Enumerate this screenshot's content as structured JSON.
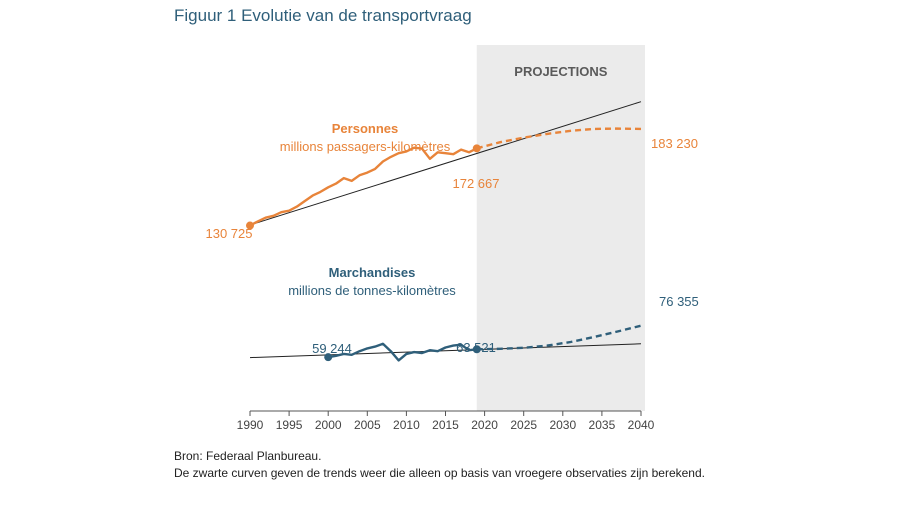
{
  "title": "Figuur 1 Evolutie van de transportvraag",
  "projection_label": "PROJECTIONS",
  "colors": {
    "persons": "#e8843a",
    "goods": "#2f5f7a",
    "trend": "#222222",
    "projection_bg": "#ebebeb"
  },
  "notes": {
    "source": "Bron: Federaal Planbureau.",
    "text": "De zwarte curven geven de trends weer die alleen op basis van vroegere observaties zijn berekend."
  },
  "chart_data": {
    "type": "line",
    "title": "Figuur 1 Evolutie van de transportvraag",
    "xlim": [
      1990,
      2040
    ],
    "ylim": [
      30000,
      200000
    ],
    "x_ticks": [
      "1990",
      "1995",
      "2000",
      "2005",
      "2010",
      "2015",
      "2020",
      "2025",
      "2030",
      "2035",
      "2040"
    ],
    "projection_range": [
      2019,
      2040
    ],
    "series": [
      {
        "name": "Personnes",
        "subtitle": "millions passagers-kilomètres",
        "historical": {
          "x": [
            1990,
            1991,
            1992,
            1993,
            1994,
            1995,
            1996,
            1997,
            1998,
            1999,
            2000,
            2001,
            2002,
            2003,
            2004,
            2005,
            2006,
            2007,
            2008,
            2009,
            2010,
            2011,
            2012,
            2013,
            2014,
            2015,
            2016,
            2017,
            2018,
            2019
          ],
          "y": [
            130725,
            133000,
            135000,
            136000,
            138000,
            138800,
            141000,
            144000,
            147000,
            149000,
            151500,
            153500,
            156500,
            155000,
            158000,
            159500,
            161500,
            165500,
            168000,
            170000,
            171000,
            173000,
            172500,
            167000,
            170500,
            170000,
            169500,
            172000,
            170500,
            172667
          ]
        },
        "projection": {
          "x": [
            2019,
            2022,
            2025,
            2028,
            2031,
            2034,
            2037,
            2040
          ],
          "y": [
            172667,
            176000,
            178500,
            180500,
            182200,
            183200,
            183400,
            183230
          ]
        },
        "trend": {
          "x": [
            1990,
            2040
          ],
          "y": [
            131000,
            198000
          ]
        },
        "labels": {
          "start": "130 725",
          "end_historical": "172 667",
          "end_projection": "183 230"
        }
      },
      {
        "name": "Marchandises",
        "subtitle": "millions de tonnes-kilomètres",
        "historical": {
          "x": [
            2000,
            2001,
            2002,
            2003,
            2004,
            2005,
            2006,
            2007,
            2008,
            2009,
            2010,
            2011,
            2012,
            2013,
            2014,
            2015,
            2016,
            2017,
            2018,
            2019
          ],
          "y": [
            59244,
            60000,
            61000,
            60500,
            62500,
            64000,
            65000,
            66500,
            62500,
            57500,
            61000,
            62000,
            61500,
            63000,
            62500,
            64500,
            65500,
            66000,
            63000,
            63521
          ]
        },
        "projection": {
          "x": [
            2019,
            2022,
            2025,
            2028,
            2031,
            2034,
            2037,
            2040
          ],
          "y": [
            63521,
            63800,
            64300,
            65500,
            67500,
            70200,
            73200,
            76355
          ]
        },
        "trend": {
          "x": [
            1990,
            2040
          ],
          "y": [
            59000,
            66500
          ]
        },
        "labels": {
          "start": "59 244",
          "end_historical": "63 521",
          "end_projection": "76 355"
        }
      }
    ]
  }
}
